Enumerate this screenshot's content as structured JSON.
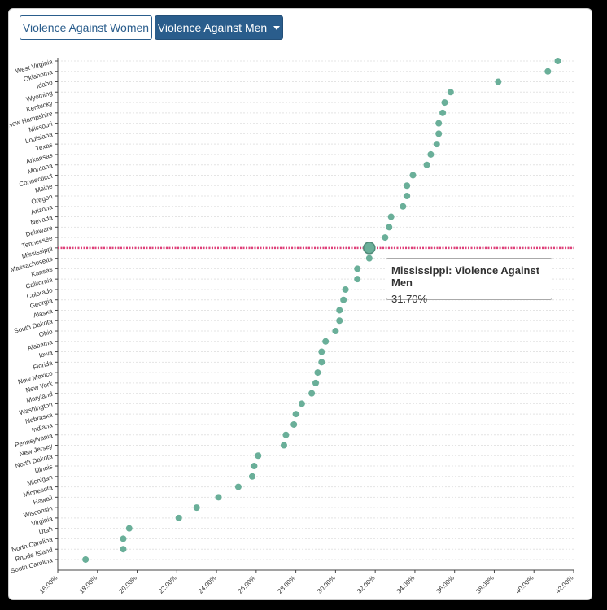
{
  "buttons": {
    "women_label": "Violence Against Women",
    "men_label": "Violence Against Men"
  },
  "tooltip": {
    "title": "Mississippi: Violence Against Men",
    "value": "31.70%"
  },
  "colors": {
    "point": "#6aaf99",
    "highlight_line": "#e0407a",
    "button_primary": "#2a5d8c"
  },
  "chart_data": {
    "type": "scatter",
    "title": "",
    "xlabel": "",
    "ylabel": "",
    "xlim": [
      16,
      42
    ],
    "x_ticks": [
      "16.00%",
      "18.00%",
      "20.00%",
      "22.00%",
      "24.00%",
      "26.00%",
      "28.00%",
      "30.00%",
      "32.00%",
      "34.00%",
      "36.00%",
      "38.00%",
      "40.00%",
      "42.00%"
    ],
    "highlight": "Mississippi",
    "grid": "horizontal dashed",
    "states": [
      "West Virginia",
      "Oklahoma",
      "Idaho",
      "Wyoming",
      "Kentucky",
      "New Hampshire",
      "Missouri",
      "Louisiana",
      "Texas",
      "Arkansas",
      "Montana",
      "Connecticut",
      "Maine",
      "Oregon",
      "Arizona",
      "Nevada",
      "Delaware",
      "Tennessee",
      "Mississippi",
      "Massachusetts",
      "Kansas",
      "California",
      "Colorado",
      "Georgia",
      "Alaska",
      "South Dakota",
      "Ohio",
      "Alabama",
      "Iowa",
      "Florida",
      "New Mexico",
      "New York",
      "Maryland",
      "Washington",
      "Nebraska",
      "Indiana",
      "Pennsylvania",
      "New Jersey",
      "North Dakota",
      "Illinois",
      "Michigan",
      "Minnesota",
      "Hawaii",
      "Wisconsin",
      "Virginia",
      "Utah",
      "North Carolina",
      "Rhode Island",
      "South Carolina"
    ],
    "values": [
      41.2,
      40.7,
      38.2,
      35.8,
      35.5,
      35.4,
      35.2,
      35.2,
      35.1,
      34.8,
      34.6,
      33.9,
      33.6,
      33.6,
      33.4,
      32.8,
      32.7,
      32.5,
      31.7,
      31.7,
      31.1,
      31.1,
      30.5,
      30.4,
      30.2,
      30.2,
      30.0,
      29.5,
      29.3,
      29.3,
      29.1,
      29.0,
      28.8,
      28.3,
      28.0,
      27.9,
      27.5,
      27.4,
      26.1,
      25.9,
      25.8,
      25.1,
      24.1,
      23.0,
      22.1,
      19.6,
      19.3,
      19.3,
      17.4
    ]
  }
}
